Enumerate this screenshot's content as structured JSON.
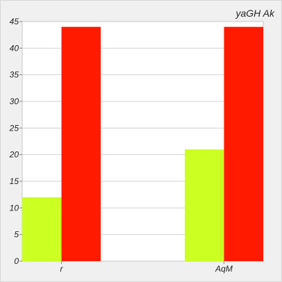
{
  "chart_data": {
    "type": "bar",
    "title": "yaGH Ak",
    "categories": [
      "r",
      "AqM"
    ],
    "series": [
      {
        "values": [
          12,
          21
        ],
        "color": "#ccff22"
      },
      {
        "values": [
          44,
          44
        ],
        "color": "#ff1a00"
      }
    ],
    "ylim": [
      0,
      45
    ],
    "yticks": [
      0,
      5,
      10,
      15,
      20,
      25,
      30,
      35,
      40,
      45
    ],
    "grid": true,
    "legend": "none"
  }
}
